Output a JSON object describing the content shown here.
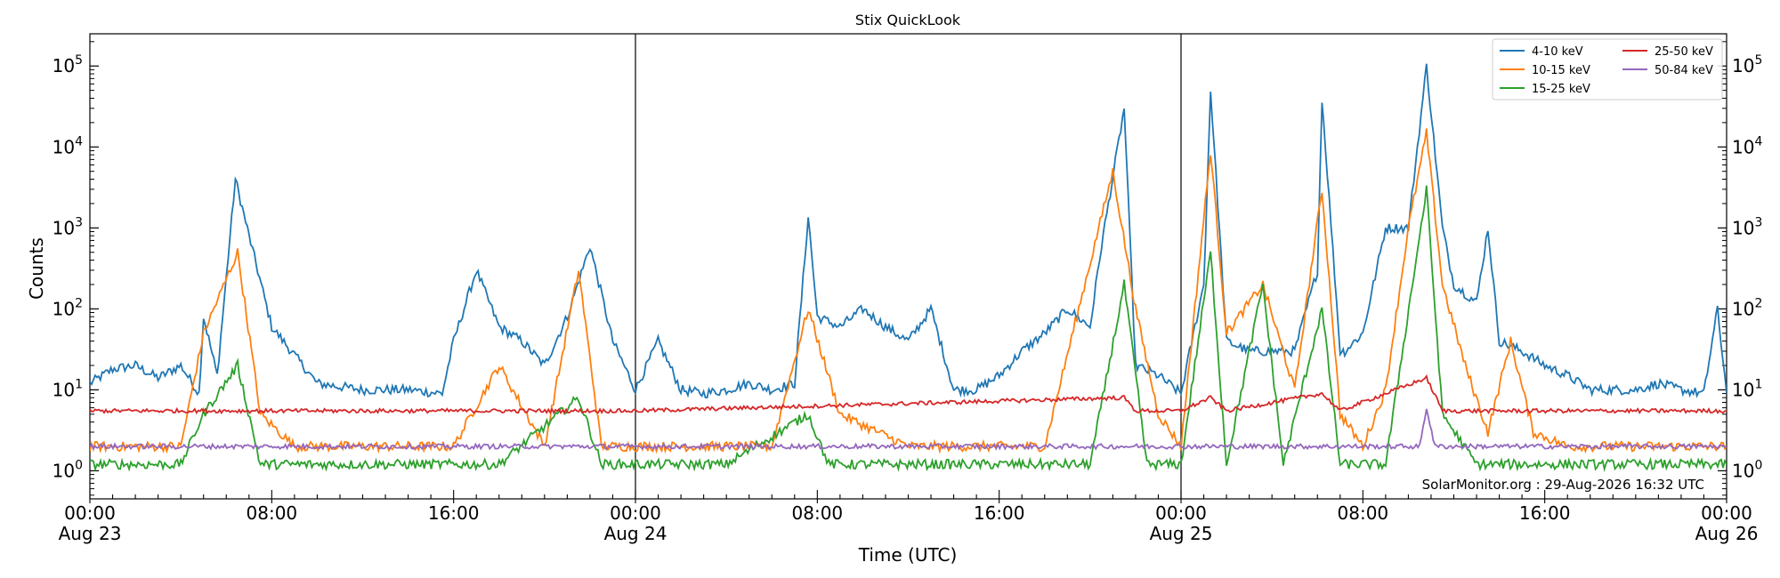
{
  "chart_data": {
    "type": "line",
    "title": "Stix QuickLook",
    "xlabel": "Time (UTC)",
    "ylabel": "Counts",
    "yscale": "log",
    "ylim": [
      0.45,
      250000
    ],
    "xlim": [
      "2026-08-23T00:00",
      "2026-08-26T00:00"
    ],
    "grid": false,
    "legend_placement": "top-right",
    "x_ticks": [
      {
        "time": "2026-08-23T00:00",
        "label": "00:00",
        "sublabel": "Aug 23"
      },
      {
        "time": "2026-08-23T08:00",
        "label": "08:00",
        "sublabel": ""
      },
      {
        "time": "2026-08-23T16:00",
        "label": "16:00",
        "sublabel": ""
      },
      {
        "time": "2026-08-24T00:00",
        "label": "00:00",
        "sublabel": "Aug 24"
      },
      {
        "time": "2026-08-24T08:00",
        "label": "08:00",
        "sublabel": ""
      },
      {
        "time": "2026-08-24T16:00",
        "label": "16:00",
        "sublabel": ""
      },
      {
        "time": "2026-08-25T00:00",
        "label": "00:00",
        "sublabel": "Aug 25"
      },
      {
        "time": "2026-08-25T08:00",
        "label": "08:00",
        "sublabel": ""
      },
      {
        "time": "2026-08-25T16:00",
        "label": "16:00",
        "sublabel": ""
      },
      {
        "time": "2026-08-26T00:00",
        "label": "00:00",
        "sublabel": "Aug 26"
      }
    ],
    "y_ticks": [
      {
        "value": 1,
        "base": "10",
        "exp": "0"
      },
      {
        "value": 10,
        "base": "10",
        "exp": "1"
      },
      {
        "value": 100,
        "base": "10",
        "exp": "2"
      },
      {
        "value": 1000,
        "base": "10",
        "exp": "3"
      },
      {
        "value": 10000,
        "base": "10",
        "exp": "4"
      },
      {
        "value": 100000,
        "base": "10",
        "exp": "5"
      }
    ],
    "day_boundaries": [
      "2026-08-24T00:00",
      "2026-08-25T00:00"
    ],
    "annotation": "SolarMonitor.org : 29-Aug-2026 16:32 UTC",
    "series": [
      {
        "name": "4-10 keV",
        "color": "#1f77b4",
        "x": [
          "2026-08-23T00:00",
          "2026-08-23T01:00",
          "2026-08-23T02:00",
          "2026-08-23T03:00",
          "2026-08-23T04:00",
          "2026-08-23T04:48",
          "2026-08-23T05:00",
          "2026-08-23T05:36",
          "2026-08-23T06:24",
          "2026-08-23T07:00",
          "2026-08-23T08:00",
          "2026-08-23T10:00",
          "2026-08-23T12:00",
          "2026-08-23T14:00",
          "2026-08-23T15:30",
          "2026-08-23T16:00",
          "2026-08-23T17:00",
          "2026-08-23T18:00",
          "2026-08-23T19:00",
          "2026-08-23T20:00",
          "2026-08-23T21:00",
          "2026-08-23T22:00",
          "2026-08-23T23:00",
          "2026-08-24T00:00",
          "2026-08-24T01:00",
          "2026-08-24T02:00",
          "2026-08-24T03:00",
          "2026-08-24T04:00",
          "2026-08-24T05:00",
          "2026-08-24T06:00",
          "2026-08-24T07:00",
          "2026-08-24T07:36",
          "2026-08-24T08:00",
          "2026-08-24T09:00",
          "2026-08-24T10:00",
          "2026-08-24T11:00",
          "2026-08-24T12:00",
          "2026-08-24T13:00",
          "2026-08-24T14:00",
          "2026-08-24T15:00",
          "2026-08-24T16:00",
          "2026-08-24T17:00",
          "2026-08-24T18:00",
          "2026-08-24T19:00",
          "2026-08-24T20:00",
          "2026-08-24T20:30",
          "2026-08-24T21:30",
          "2026-08-24T22:00",
          "2026-08-24T23:00",
          "2026-08-25T00:00",
          "2026-08-25T01:00",
          "2026-08-25T01:18",
          "2026-08-25T02:00",
          "2026-08-25T03:00",
          "2026-08-25T03:36",
          "2026-08-25T04:00",
          "2026-08-25T05:00",
          "2026-08-25T06:00",
          "2026-08-25T06:12",
          "2026-08-25T07:00",
          "2026-08-25T07:12",
          "2026-08-25T08:00",
          "2026-08-25T09:00",
          "2026-08-25T10:00",
          "2026-08-25T10:48",
          "2026-08-25T11:30",
          "2026-08-25T12:00",
          "2026-08-25T13:00",
          "2026-08-25T13:30",
          "2026-08-25T14:00",
          "2026-08-25T15:00",
          "2026-08-25T16:00",
          "2026-08-25T17:00",
          "2026-08-25T18:00",
          "2026-08-25T19:00",
          "2026-08-25T20:00",
          "2026-08-25T21:00",
          "2026-08-25T22:00",
          "2026-08-25T23:00",
          "2026-08-25T23:36",
          "2026-08-26T00:00"
        ],
        "values": [
          12,
          18,
          20,
          14,
          20,
          9,
          80,
          15,
          4000,
          800,
          60,
          12,
          10,
          10,
          9,
          40,
          300,
          60,
          40,
          20,
          80,
          600,
          40,
          10,
          40,
          10,
          9,
          10,
          12,
          10,
          12,
          1400,
          80,
          60,
          100,
          60,
          40,
          100,
          10,
          10,
          15,
          30,
          50,
          100,
          60,
          600,
          30000,
          20,
          15,
          9,
          200,
          50000,
          40,
          30,
          30,
          30,
          30,
          300,
          40000,
          30,
          30,
          50,
          1000,
          1000,
          100000,
          1000,
          200,
          120,
          1000,
          40,
          30,
          20,
          15,
          10,
          10,
          10,
          12,
          10,
          9,
          100,
          9
        ]
      },
      {
        "name": "10-15 keV",
        "color": "#ff7f0e",
        "x": [
          "2026-08-23T00:00",
          "2026-08-23T02:00",
          "2026-08-23T04:00",
          "2026-08-23T05:00",
          "2026-08-23T06:30",
          "2026-08-23T07:30",
          "2026-08-23T09:00",
          "2026-08-23T12:00",
          "2026-08-23T14:00",
          "2026-08-23T16:00",
          "2026-08-23T18:00",
          "2026-08-23T20:00",
          "2026-08-23T21:30",
          "2026-08-23T22:30",
          "2026-08-24T00:00",
          "2026-08-24T02:00",
          "2026-08-24T04:00",
          "2026-08-24T06:00",
          "2026-08-24T07:36",
          "2026-08-24T09:00",
          "2026-08-24T12:00",
          "2026-08-24T14:00",
          "2026-08-24T16:00",
          "2026-08-24T18:00",
          "2026-08-24T21:00",
          "2026-08-24T22:00",
          "2026-08-24T23:00",
          "2026-08-25T00:00",
          "2026-08-25T01:18",
          "2026-08-25T02:00",
          "2026-08-25T03:36",
          "2026-08-25T05:00",
          "2026-08-25T06:12",
          "2026-08-25T07:00",
          "2026-08-25T08:00",
          "2026-08-25T09:00",
          "2026-08-25T10:00",
          "2026-08-25T10:48",
          "2026-08-25T11:30",
          "2026-08-25T12:30",
          "2026-08-25T13:30",
          "2026-08-25T14:30",
          "2026-08-25T15:30",
          "2026-08-25T17:00",
          "2026-08-25T20:00",
          "2026-08-25T23:00",
          "2026-08-26T00:00"
        ],
        "values": [
          2,
          2,
          2,
          50,
          500,
          5,
          2,
          2,
          2,
          2,
          20,
          2,
          300,
          2,
          2,
          2,
          2,
          2,
          100,
          5,
          2,
          2,
          2,
          2,
          5000,
          100,
          5,
          2,
          9000,
          50,
          200,
          10,
          3000,
          5,
          2,
          10,
          1000,
          15000,
          200,
          20,
          3,
          40,
          3,
          2,
          2,
          2,
          2
        ]
      },
      {
        "name": "15-25 keV",
        "color": "#2ca02c",
        "x": [
          "2026-08-23T00:00",
          "2026-08-23T04:00",
          "2026-08-23T05:00",
          "2026-08-23T06:30",
          "2026-08-23T07:30",
          "2026-08-23T10:00",
          "2026-08-23T14:00",
          "2026-08-23T18:00",
          "2026-08-23T21:30",
          "2026-08-23T22:30",
          "2026-08-24T00:00",
          "2026-08-24T04:00",
          "2026-08-24T07:36",
          "2026-08-24T08:30",
          "2026-08-24T14:00",
          "2026-08-24T20:00",
          "2026-08-24T21:30",
          "2026-08-24T22:30",
          "2026-08-25T00:00",
          "2026-08-25T01:18",
          "2026-08-25T02:00",
          "2026-08-25T03:36",
          "2026-08-25T04:30",
          "2026-08-25T06:12",
          "2026-08-25T07:00",
          "2026-08-25T09:00",
          "2026-08-25T10:48",
          "2026-08-25T11:30",
          "2026-08-25T13:00",
          "2026-08-25T18:00",
          "2026-08-26T00:00"
        ],
        "values": [
          1.2,
          1.2,
          5,
          20,
          1.2,
          1.2,
          1.2,
          1.2,
          8,
          1.2,
          1.2,
          1.2,
          5,
          1.2,
          1.2,
          1.2,
          200,
          1.2,
          1.2,
          500,
          1.2,
          200,
          1.2,
          100,
          1.2,
          1.2,
          3000,
          5,
          1.2,
          1.2,
          1.2
        ]
      },
      {
        "name": "25-50 keV",
        "color": "#d62728",
        "x": [
          "2026-08-23T00:00",
          "2026-08-24T00:00",
          "2026-08-24T21:30",
          "2026-08-24T22:00",
          "2026-08-25T00:00",
          "2026-08-25T01:18",
          "2026-08-25T02:00",
          "2026-08-25T06:12",
          "2026-08-25T07:00",
          "2026-08-25T10:48",
          "2026-08-25T11:30",
          "2026-08-26T00:00"
        ],
        "values": [
          5.5,
          5.5,
          8,
          5.5,
          5.5,
          8,
          5.5,
          9,
          5.5,
          14,
          5.5,
          5.5
        ]
      },
      {
        "name": "50-84 keV",
        "color": "#9467bd",
        "x": [
          "2026-08-23T00:00",
          "2026-08-24T00:00",
          "2026-08-25T00:00",
          "2026-08-25T10:30",
          "2026-08-25T10:48",
          "2026-08-25T11:10",
          "2026-08-26T00:00"
        ],
        "values": [
          2,
          2,
          2,
          2,
          6,
          2,
          2
        ]
      }
    ]
  }
}
